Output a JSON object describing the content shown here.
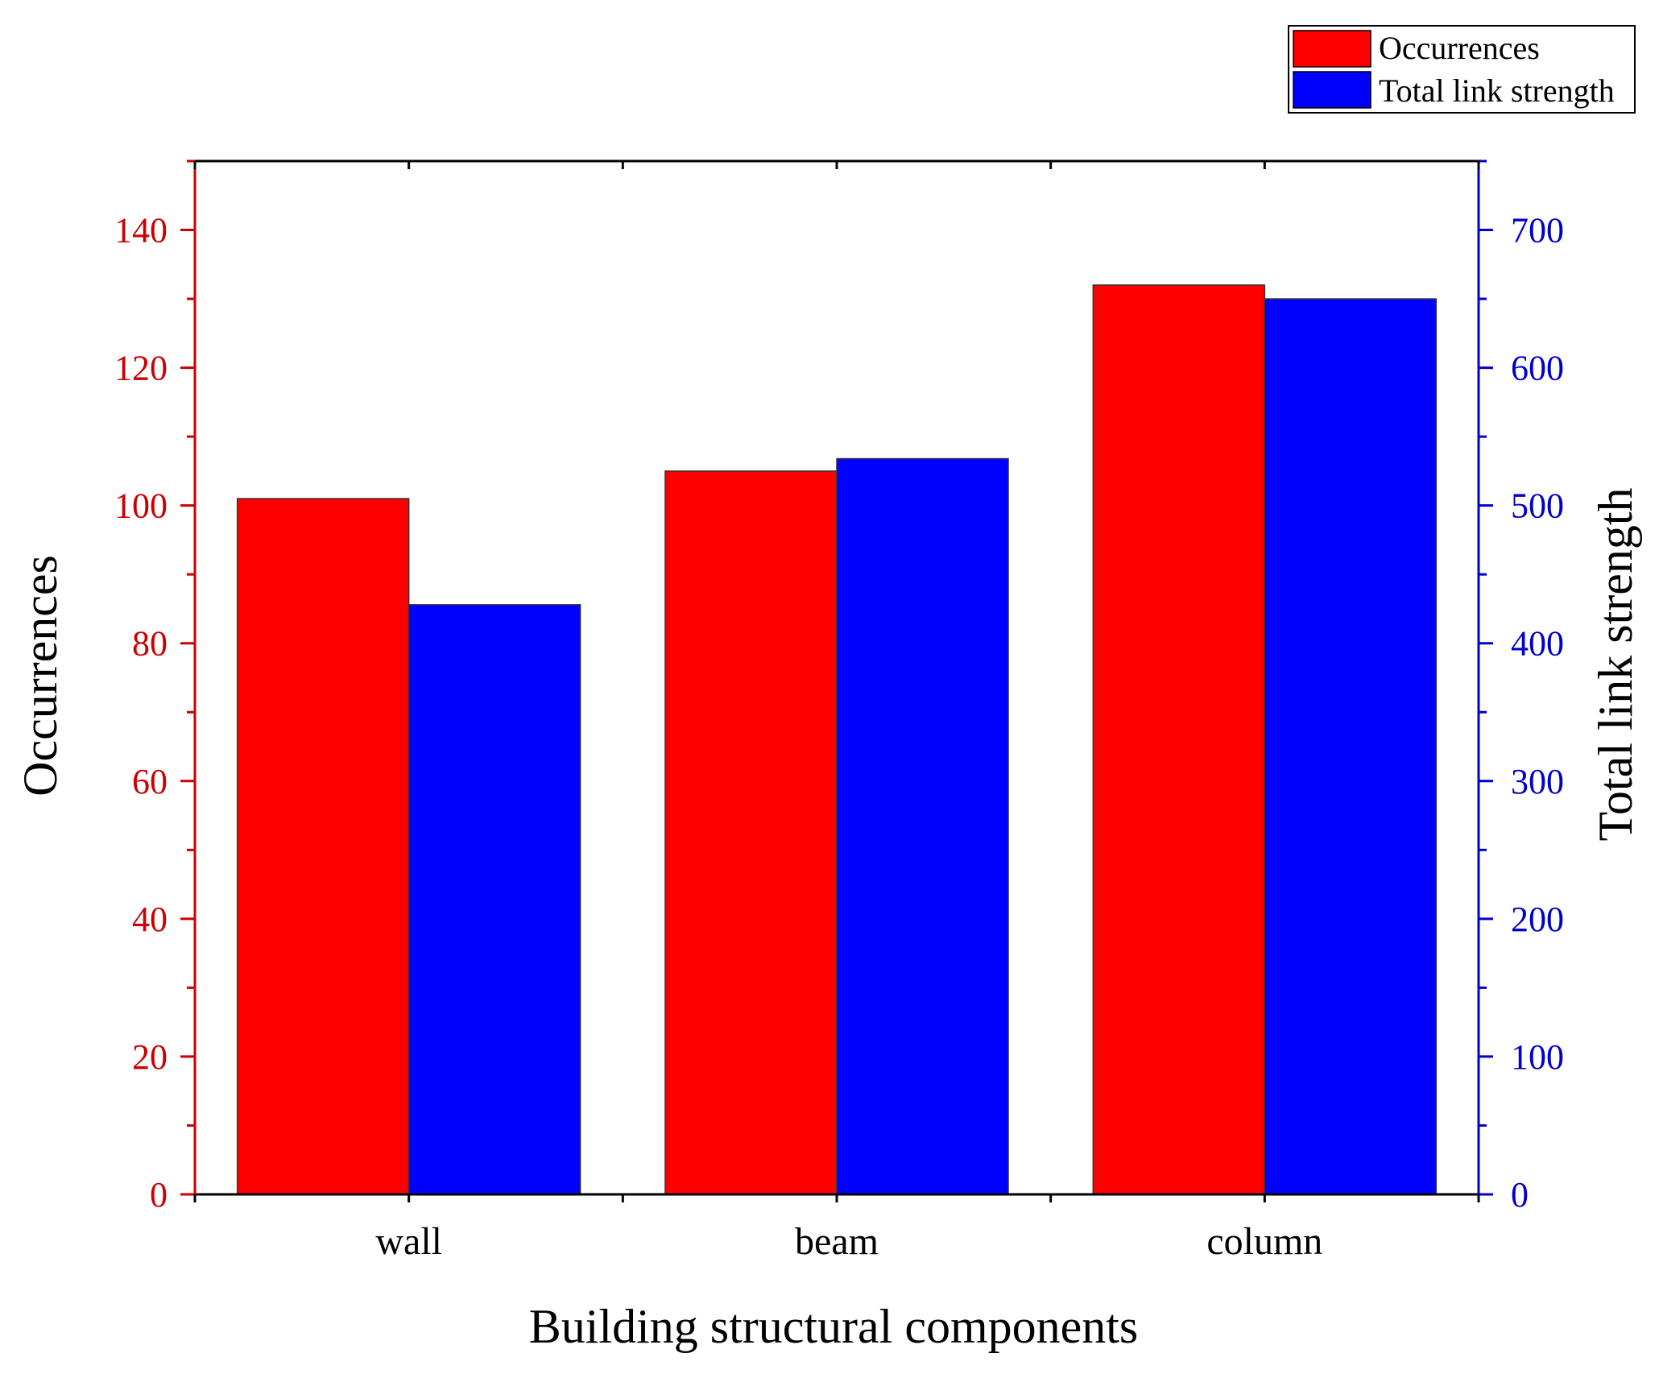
{
  "chart_data": {
    "type": "bar",
    "categories": [
      "wall",
      "beam",
      "column"
    ],
    "series": [
      {
        "name": "Occurrences",
        "axis": "left",
        "color": "#ff0000",
        "values": [
          101,
          105,
          132
        ]
      },
      {
        "name": "Total link strength",
        "axis": "right",
        "color": "#0000ff",
        "values": [
          428,
          534,
          650
        ]
      }
    ],
    "xlabel": "Building structural components",
    "ylabel": "Occurrences",
    "y2label": "Total link strength",
    "ylim": [
      0,
      150
    ],
    "y2lim": [
      0,
      750
    ],
    "yticks": [
      0,
      20,
      40,
      60,
      80,
      100,
      120,
      140
    ],
    "y2ticks": [
      0,
      100,
      200,
      300,
      400,
      500,
      600,
      700
    ],
    "left_axis_color": "#cc0000",
    "right_axis_color": "#0000cc",
    "legend_position": "top-right",
    "grid": false
  }
}
